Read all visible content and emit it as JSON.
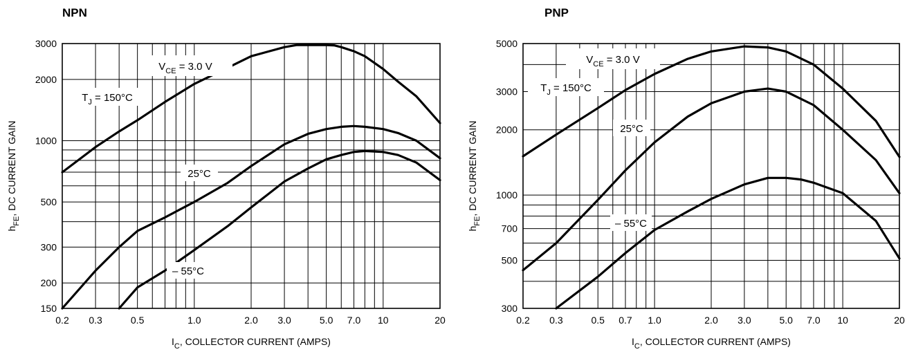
{
  "chart_data": [
    {
      "type": "line",
      "title": "NPN",
      "xlabel": {
        "main": "I",
        "sub": "C",
        "rest": ", COLLECTOR CURRENT (AMPS)"
      },
      "ylabel": {
        "main": "h",
        "sub": "FE",
        "rest": ", DC CURRENT GAIN"
      },
      "x_scale": "log",
      "y_scale": "log",
      "xlim": [
        0.2,
        20
      ],
      "ylim": [
        150,
        3000
      ],
      "x_ticks": [
        0.2,
        0.3,
        0.5,
        1.0,
        2.0,
        3.0,
        5.0,
        7.0,
        10,
        20
      ],
      "x_tick_labels": [
        "0.2",
        "0.3",
        "0.5",
        "1.0",
        "2.0",
        "3.0",
        "5.0",
        "7.0",
        "10",
        "20"
      ],
      "y_ticks": [
        150,
        200,
        300,
        500,
        1000,
        2000,
        3000
      ],
      "y_tick_labels": [
        "150",
        "200",
        "300",
        "500",
        "1000",
        "2000",
        "3000"
      ],
      "x_grid": [
        0.2,
        0.3,
        0.4,
        0.5,
        0.6,
        0.7,
        0.8,
        0.9,
        1,
        2,
        3,
        4,
        5,
        6,
        7,
        8,
        9,
        10,
        20
      ],
      "y_grid": [
        150,
        200,
        300,
        400,
        500,
        600,
        700,
        800,
        900,
        1000,
        2000,
        3000
      ],
      "grid": true,
      "annotations": [
        {
          "id": "vce",
          "main": "V",
          "sub": "CE",
          "rest": " = 3.0 V"
        },
        {
          "id": "t150",
          "main": "T",
          "sub": "J",
          "rest": " = 150°C"
        },
        {
          "id": "t25",
          "main": "25°C",
          "sub": "",
          "rest": ""
        },
        {
          "id": "tm55",
          "main": "– 55°C",
          "sub": "",
          "rest": ""
        }
      ],
      "series": [
        {
          "x": [
            0.2,
            0.3,
            0.4,
            0.5,
            0.7,
            1.0,
            1.5,
            2.0,
            3.0,
            3.5,
            4.0,
            5.0,
            5.5,
            6.0,
            7.0,
            8.0,
            10,
            12,
            15,
            20
          ],
          "y": [
            700,
            930,
            1110,
            1260,
            1550,
            1900,
            2280,
            2600,
            2880,
            2950,
            2950,
            2950,
            2940,
            2880,
            2750,
            2600,
            2250,
            1950,
            1650,
            1220
          ]
        },
        {
          "x": [
            0.2,
            0.3,
            0.4,
            0.5,
            0.7,
            1.0,
            1.5,
            2.0,
            3.0,
            4.0,
            5.0,
            6.0,
            7.0,
            8.0,
            10,
            12,
            15,
            20
          ],
          "y": [
            150,
            230,
            300,
            360,
            420,
            500,
            620,
            750,
            960,
            1080,
            1140,
            1170,
            1180,
            1170,
            1140,
            1090,
            1000,
            820
          ]
        },
        {
          "x": [
            0.4,
            0.5,
            0.7,
            1.0,
            1.5,
            2.0,
            3.0,
            4.0,
            5.0,
            6.0,
            7.0,
            8.0,
            10,
            12,
            15,
            20
          ],
          "y": [
            150,
            190,
            230,
            290,
            380,
            470,
            630,
            730,
            810,
            850,
            880,
            890,
            880,
            850,
            780,
            640
          ]
        }
      ]
    },
    {
      "type": "line",
      "title": "PNP",
      "xlabel": {
        "main": "I",
        "sub": "C",
        "rest": ", COLLECTOR CURRENT (AMPS)"
      },
      "ylabel": {
        "main": "h",
        "sub": "FE",
        "rest": ", DC CURRENT GAIN"
      },
      "x_scale": "log",
      "y_scale": "log",
      "xlim": [
        0.2,
        20
      ],
      "ylim": [
        300,
        5000
      ],
      "x_ticks": [
        0.2,
        0.3,
        0.5,
        0.7,
        1.0,
        2.0,
        3.0,
        5.0,
        7.0,
        10,
        20
      ],
      "x_tick_labels": [
        "0.2",
        "0.3",
        "0.5",
        "0.7",
        "1.0",
        "2.0",
        "3.0",
        "5.0",
        "7.0",
        "10",
        "20"
      ],
      "y_ticks": [
        300,
        500,
        700,
        1000,
        2000,
        3000,
        5000
      ],
      "y_tick_labels": [
        "300",
        "500",
        "700",
        "1000",
        "2000",
        "3000",
        "5000"
      ],
      "x_grid": [
        0.2,
        0.3,
        0.4,
        0.5,
        0.6,
        0.7,
        0.8,
        0.9,
        1,
        2,
        3,
        4,
        5,
        6,
        7,
        8,
        9,
        10,
        20
      ],
      "y_grid": [
        300,
        400,
        500,
        600,
        700,
        800,
        900,
        1000,
        2000,
        3000,
        4000,
        5000
      ],
      "grid": true,
      "annotations": [
        {
          "id": "vce",
          "main": "V",
          "sub": "CE",
          "rest": " = 3.0 V"
        },
        {
          "id": "t150",
          "main": "T",
          "sub": "J",
          "rest": " = 150°C"
        },
        {
          "id": "t25",
          "main": "25°C",
          "sub": "",
          "rest": ""
        },
        {
          "id": "tm55",
          "main": "– 55°C",
          "sub": "",
          "rest": ""
        }
      ],
      "series": [
        {
          "x": [
            0.2,
            0.3,
            0.5,
            0.7,
            1.0,
            1.5,
            2.0,
            3.0,
            4.0,
            5.0,
            7.0,
            10,
            15,
            20
          ],
          "y": [
            1510,
            1900,
            2520,
            3050,
            3620,
            4250,
            4600,
            4850,
            4800,
            4600,
            4000,
            3100,
            2200,
            1500
          ]
        },
        {
          "x": [
            0.2,
            0.3,
            0.5,
            0.7,
            1.0,
            1.5,
            2.0,
            3.0,
            4.0,
            5.0,
            7.0,
            10,
            15,
            20
          ],
          "y": [
            450,
            600,
            950,
            1300,
            1750,
            2300,
            2650,
            3000,
            3100,
            3000,
            2600,
            2000,
            1450,
            1020
          ]
        },
        {
          "x": [
            0.3,
            0.5,
            0.7,
            1.0,
            1.5,
            2.0,
            3.0,
            4.0,
            5.0,
            6.0,
            7.0,
            10,
            15,
            20
          ],
          "y": [
            300,
            420,
            540,
            690,
            840,
            960,
            1120,
            1200,
            1200,
            1180,
            1140,
            1020,
            760,
            510
          ]
        }
      ]
    }
  ]
}
